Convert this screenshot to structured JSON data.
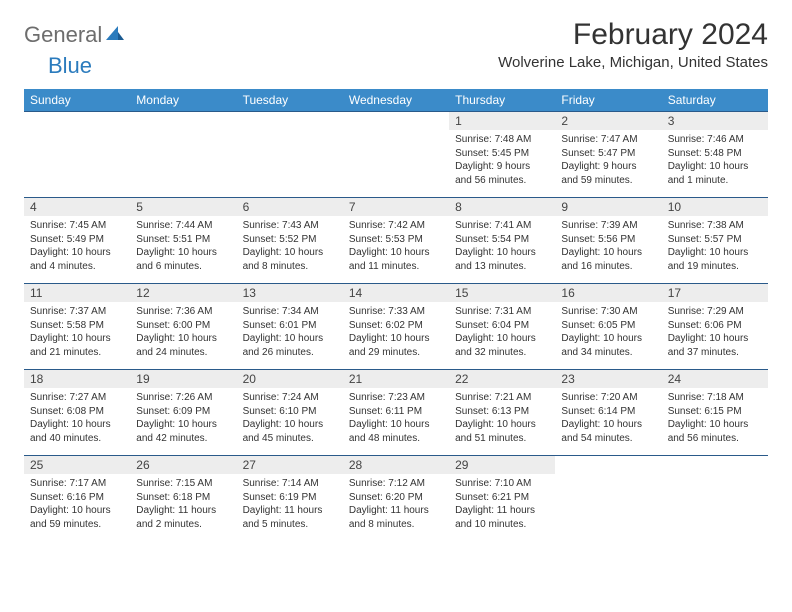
{
  "brand": {
    "part1": "General",
    "part2": "Blue"
  },
  "title": "February 2024",
  "location": "Wolverine Lake, Michigan, United States",
  "colors": {
    "header_bg": "#3b8bc9",
    "header_text": "#ffffff",
    "row_border": "#2a5a8a",
    "daynum_bg": "#ededed",
    "text": "#333333",
    "brand_gray": "#6d6d6d",
    "brand_blue": "#2b7bbd"
  },
  "days_of_week": [
    "Sunday",
    "Monday",
    "Tuesday",
    "Wednesday",
    "Thursday",
    "Friday",
    "Saturday"
  ],
  "weeks": [
    [
      {
        "n": "",
        "sr": "",
        "ss": "",
        "dl": ""
      },
      {
        "n": "",
        "sr": "",
        "ss": "",
        "dl": ""
      },
      {
        "n": "",
        "sr": "",
        "ss": "",
        "dl": ""
      },
      {
        "n": "",
        "sr": "",
        "ss": "",
        "dl": ""
      },
      {
        "n": "1",
        "sr": "Sunrise: 7:48 AM",
        "ss": "Sunset: 5:45 PM",
        "dl": "Daylight: 9 hours and 56 minutes."
      },
      {
        "n": "2",
        "sr": "Sunrise: 7:47 AM",
        "ss": "Sunset: 5:47 PM",
        "dl": "Daylight: 9 hours and 59 minutes."
      },
      {
        "n": "3",
        "sr": "Sunrise: 7:46 AM",
        "ss": "Sunset: 5:48 PM",
        "dl": "Daylight: 10 hours and 1 minute."
      }
    ],
    [
      {
        "n": "4",
        "sr": "Sunrise: 7:45 AM",
        "ss": "Sunset: 5:49 PM",
        "dl": "Daylight: 10 hours and 4 minutes."
      },
      {
        "n": "5",
        "sr": "Sunrise: 7:44 AM",
        "ss": "Sunset: 5:51 PM",
        "dl": "Daylight: 10 hours and 6 minutes."
      },
      {
        "n": "6",
        "sr": "Sunrise: 7:43 AM",
        "ss": "Sunset: 5:52 PM",
        "dl": "Daylight: 10 hours and 8 minutes."
      },
      {
        "n": "7",
        "sr": "Sunrise: 7:42 AM",
        "ss": "Sunset: 5:53 PM",
        "dl": "Daylight: 10 hours and 11 minutes."
      },
      {
        "n": "8",
        "sr": "Sunrise: 7:41 AM",
        "ss": "Sunset: 5:54 PM",
        "dl": "Daylight: 10 hours and 13 minutes."
      },
      {
        "n": "9",
        "sr": "Sunrise: 7:39 AM",
        "ss": "Sunset: 5:56 PM",
        "dl": "Daylight: 10 hours and 16 minutes."
      },
      {
        "n": "10",
        "sr": "Sunrise: 7:38 AM",
        "ss": "Sunset: 5:57 PM",
        "dl": "Daylight: 10 hours and 19 minutes."
      }
    ],
    [
      {
        "n": "11",
        "sr": "Sunrise: 7:37 AM",
        "ss": "Sunset: 5:58 PM",
        "dl": "Daylight: 10 hours and 21 minutes."
      },
      {
        "n": "12",
        "sr": "Sunrise: 7:36 AM",
        "ss": "Sunset: 6:00 PM",
        "dl": "Daylight: 10 hours and 24 minutes."
      },
      {
        "n": "13",
        "sr": "Sunrise: 7:34 AM",
        "ss": "Sunset: 6:01 PM",
        "dl": "Daylight: 10 hours and 26 minutes."
      },
      {
        "n": "14",
        "sr": "Sunrise: 7:33 AM",
        "ss": "Sunset: 6:02 PM",
        "dl": "Daylight: 10 hours and 29 minutes."
      },
      {
        "n": "15",
        "sr": "Sunrise: 7:31 AM",
        "ss": "Sunset: 6:04 PM",
        "dl": "Daylight: 10 hours and 32 minutes."
      },
      {
        "n": "16",
        "sr": "Sunrise: 7:30 AM",
        "ss": "Sunset: 6:05 PM",
        "dl": "Daylight: 10 hours and 34 minutes."
      },
      {
        "n": "17",
        "sr": "Sunrise: 7:29 AM",
        "ss": "Sunset: 6:06 PM",
        "dl": "Daylight: 10 hours and 37 minutes."
      }
    ],
    [
      {
        "n": "18",
        "sr": "Sunrise: 7:27 AM",
        "ss": "Sunset: 6:08 PM",
        "dl": "Daylight: 10 hours and 40 minutes."
      },
      {
        "n": "19",
        "sr": "Sunrise: 7:26 AM",
        "ss": "Sunset: 6:09 PM",
        "dl": "Daylight: 10 hours and 42 minutes."
      },
      {
        "n": "20",
        "sr": "Sunrise: 7:24 AM",
        "ss": "Sunset: 6:10 PM",
        "dl": "Daylight: 10 hours and 45 minutes."
      },
      {
        "n": "21",
        "sr": "Sunrise: 7:23 AM",
        "ss": "Sunset: 6:11 PM",
        "dl": "Daylight: 10 hours and 48 minutes."
      },
      {
        "n": "22",
        "sr": "Sunrise: 7:21 AM",
        "ss": "Sunset: 6:13 PM",
        "dl": "Daylight: 10 hours and 51 minutes."
      },
      {
        "n": "23",
        "sr": "Sunrise: 7:20 AM",
        "ss": "Sunset: 6:14 PM",
        "dl": "Daylight: 10 hours and 54 minutes."
      },
      {
        "n": "24",
        "sr": "Sunrise: 7:18 AM",
        "ss": "Sunset: 6:15 PM",
        "dl": "Daylight: 10 hours and 56 minutes."
      }
    ],
    [
      {
        "n": "25",
        "sr": "Sunrise: 7:17 AM",
        "ss": "Sunset: 6:16 PM",
        "dl": "Daylight: 10 hours and 59 minutes."
      },
      {
        "n": "26",
        "sr": "Sunrise: 7:15 AM",
        "ss": "Sunset: 6:18 PM",
        "dl": "Daylight: 11 hours and 2 minutes."
      },
      {
        "n": "27",
        "sr": "Sunrise: 7:14 AM",
        "ss": "Sunset: 6:19 PM",
        "dl": "Daylight: 11 hours and 5 minutes."
      },
      {
        "n": "28",
        "sr": "Sunrise: 7:12 AM",
        "ss": "Sunset: 6:20 PM",
        "dl": "Daylight: 11 hours and 8 minutes."
      },
      {
        "n": "29",
        "sr": "Sunrise: 7:10 AM",
        "ss": "Sunset: 6:21 PM",
        "dl": "Daylight: 11 hours and 10 minutes."
      },
      {
        "n": "",
        "sr": "",
        "ss": "",
        "dl": ""
      },
      {
        "n": "",
        "sr": "",
        "ss": "",
        "dl": ""
      }
    ]
  ]
}
